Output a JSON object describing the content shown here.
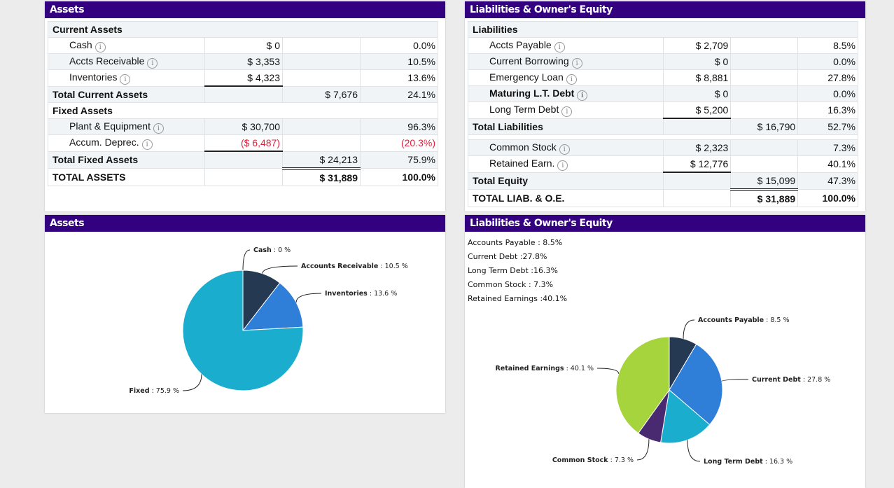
{
  "assets_panel": {
    "title": "Assets",
    "rows": [
      {
        "label": "Current Assets",
        "type": "section"
      },
      {
        "label": "Cash",
        "info": true,
        "c1": "$ 0",
        "c2": "",
        "pct": "0.0%"
      },
      {
        "label": "Accts Receivable",
        "info": true,
        "c1": "$ 3,353",
        "c2": "",
        "pct": "10.5%"
      },
      {
        "label": "Inventories",
        "info": true,
        "c1": "$ 4,323",
        "c2": "",
        "pct": "13.6%",
        "ul1": true
      },
      {
        "label": "Total Current Assets",
        "type": "total",
        "c1": "",
        "c2": "$ 7,676",
        "pct": "24.1%"
      },
      {
        "label": "Fixed Assets",
        "type": "section"
      },
      {
        "label": "Plant & Equipment",
        "info": true,
        "c1": "$ 30,700",
        "c2": "",
        "pct": "96.3%"
      },
      {
        "label": "Accum. Deprec.",
        "info": true,
        "c1": "($ 6,487)",
        "c2": "",
        "pct": "(20.3%)",
        "negative": true,
        "ul1": true
      },
      {
        "label": "Total Fixed Assets",
        "type": "total",
        "c1": "",
        "c2": "$ 24,213",
        "pct": "75.9%",
        "dul2": true
      },
      {
        "label": "TOTAL ASSETS",
        "type": "grand",
        "c1": "",
        "c2": "$ 31,889",
        "pct": "100.0%"
      }
    ]
  },
  "liabilities_panel": {
    "title": "Liabilities & Owner's Equity",
    "rows": [
      {
        "label": "Liabilities",
        "type": "section"
      },
      {
        "label": "Accts Payable",
        "info": true,
        "c1": "$ 2,709",
        "c2": "",
        "pct": "8.5%"
      },
      {
        "label": "Current Borrowing",
        "info": true,
        "c1": "$ 0",
        "c2": "",
        "pct": "0.0%"
      },
      {
        "label": "Emergency Loan",
        "info": true,
        "c1": "$ 8,881",
        "c2": "",
        "pct": "27.8%"
      },
      {
        "label": "Maturing L.T. Debt",
        "info": true,
        "bold": true,
        "c1": "$ 0",
        "c2": "",
        "pct": "0.0%"
      },
      {
        "label": "Long Term Debt",
        "info": true,
        "c1": "$ 5,200",
        "c2": "",
        "pct": "16.3%",
        "ul1": true
      },
      {
        "label": "Total Liabilities",
        "type": "total",
        "c1": "",
        "c2": "$ 16,790",
        "pct": "52.7%"
      },
      {
        "type": "spacer"
      },
      {
        "label": "Common Stock",
        "info": true,
        "c1": "$ 2,323",
        "c2": "",
        "pct": "7.3%"
      },
      {
        "label": "Retained Earn.",
        "info": true,
        "c1": "$ 12,776",
        "c2": "",
        "pct": "40.1%",
        "ul1": true
      },
      {
        "label": "Total Equity",
        "type": "total",
        "c1": "",
        "c2": "$ 15,099",
        "pct": "47.3%",
        "dul2": true
      },
      {
        "label": "TOTAL LIAB. & O.E.",
        "type": "grand",
        "c1": "",
        "c2": "$ 31,889",
        "pct": "100.0%"
      }
    ]
  },
  "assets_chart": {
    "title": "Assets",
    "chart_data": {
      "type": "pie",
      "slices": [
        {
          "name": "Cash",
          "value": 0,
          "label": "0 %",
          "color": "#253a52"
        },
        {
          "name": "Accounts Receivable",
          "value": 10.5,
          "label": "10.5 %",
          "color": "#253a52"
        },
        {
          "name": "Inventories",
          "value": 13.6,
          "label": "13.6 %",
          "color": "#2f7ed8"
        },
        {
          "name": "Fixed",
          "value": 75.9,
          "label": "75.9 %",
          "color": "#1aadce"
        }
      ]
    }
  },
  "loe_chart": {
    "title": "Liabilities & Owner's Equity",
    "legend": [
      "Accounts Payable : 8.5%",
      "Current Debt :27.8%",
      "Long Term Debt :16.3%",
      "Common Stock : 7.3%",
      "Retained Earnings :40.1%"
    ],
    "chart_data": {
      "type": "pie",
      "slices": [
        {
          "name": "Accounts Payable",
          "value": 8.5,
          "label": "8.5 %",
          "color": "#253a52"
        },
        {
          "name": "Current Debt",
          "value": 27.8,
          "label": "27.8 %",
          "color": "#2f7ed8"
        },
        {
          "name": "Long Term Debt",
          "value": 16.3,
          "label": "16.3 %",
          "color": "#1aadce"
        },
        {
          "name": "Common Stock",
          "value": 7.3,
          "label": "7.3 %",
          "color": "#492970"
        },
        {
          "name": "Retained Earnings",
          "value": 40.1,
          "label": "40.1 %",
          "color": "#a6d43c"
        }
      ]
    }
  }
}
